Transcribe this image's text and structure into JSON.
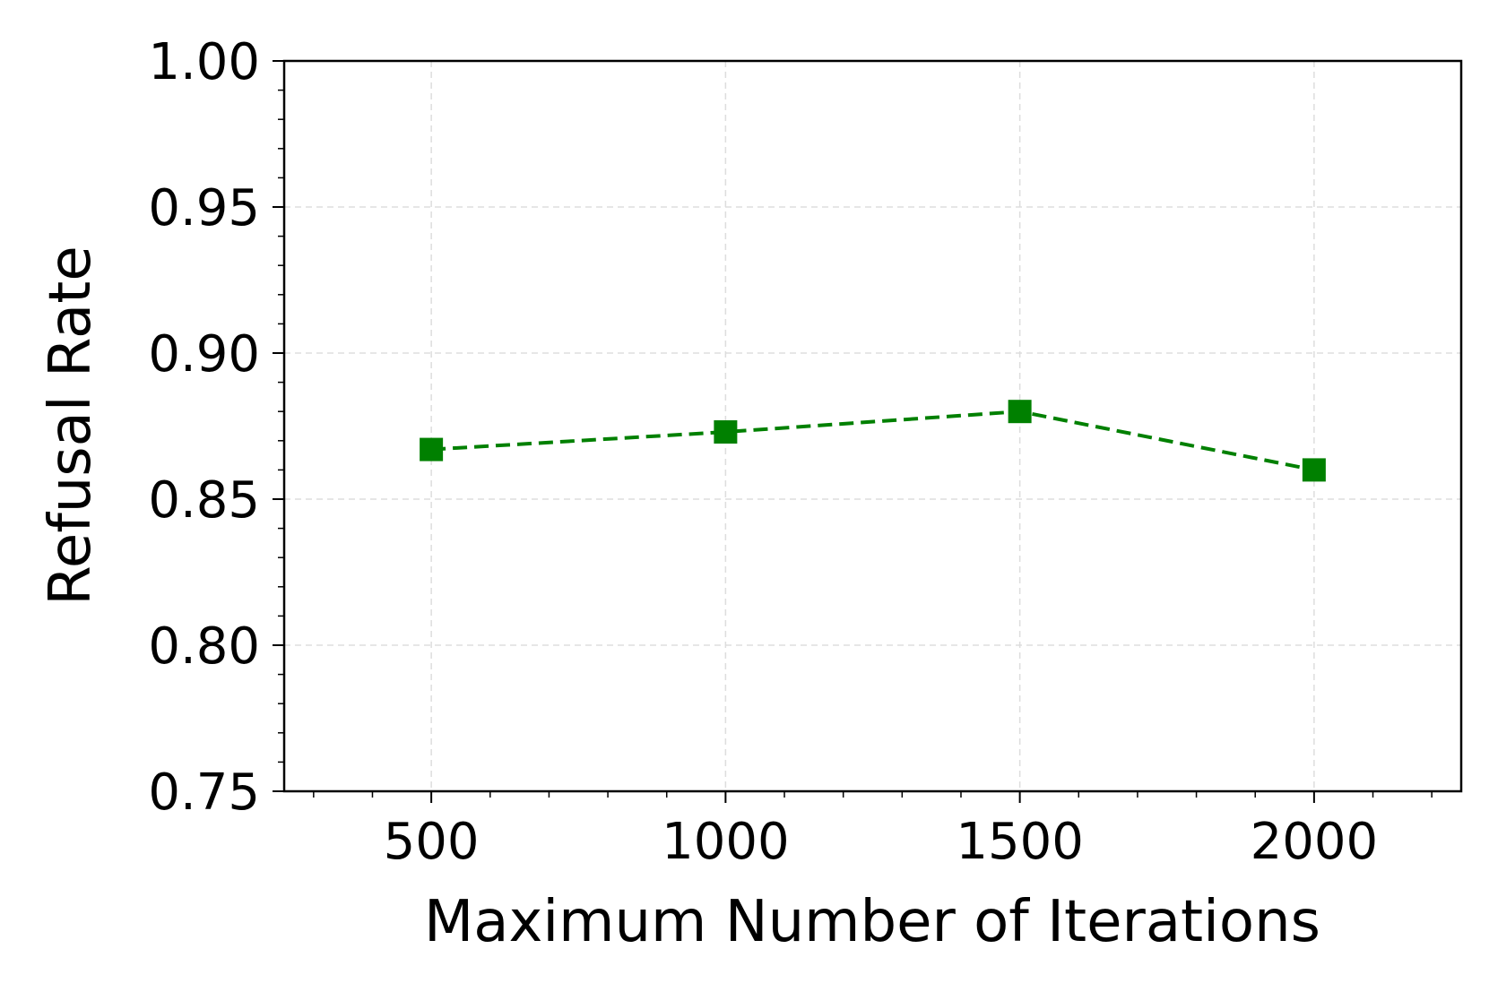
{
  "chart_data": {
    "type": "line",
    "title": "",
    "xlabel": "Maximum Number of Iterations",
    "ylabel": "Refusal Rate",
    "xlim": [
      250,
      2250
    ],
    "ylim": [
      0.75,
      1.0
    ],
    "x_ticks": [
      "500",
      "1000",
      "1500",
      "2000"
    ],
    "x_tick_values": [
      500,
      1000,
      1500,
      2000
    ],
    "x_minor_step": 100,
    "y_ticks": [
      "0.75",
      "0.80",
      "0.85",
      "0.90",
      "0.95",
      "1.00"
    ],
    "y_tick_values": [
      0.75,
      0.8,
      0.85,
      0.9,
      0.95,
      1.0
    ],
    "y_minor_step": 0.01,
    "grid": true,
    "legend": "none",
    "series": [
      {
        "color": "#008000",
        "line_style": "dashed",
        "marker": "square",
        "x": [
          500,
          1000,
          1500,
          2000
        ],
        "y": [
          0.867,
          0.873,
          0.88,
          0.86
        ]
      }
    ]
  }
}
